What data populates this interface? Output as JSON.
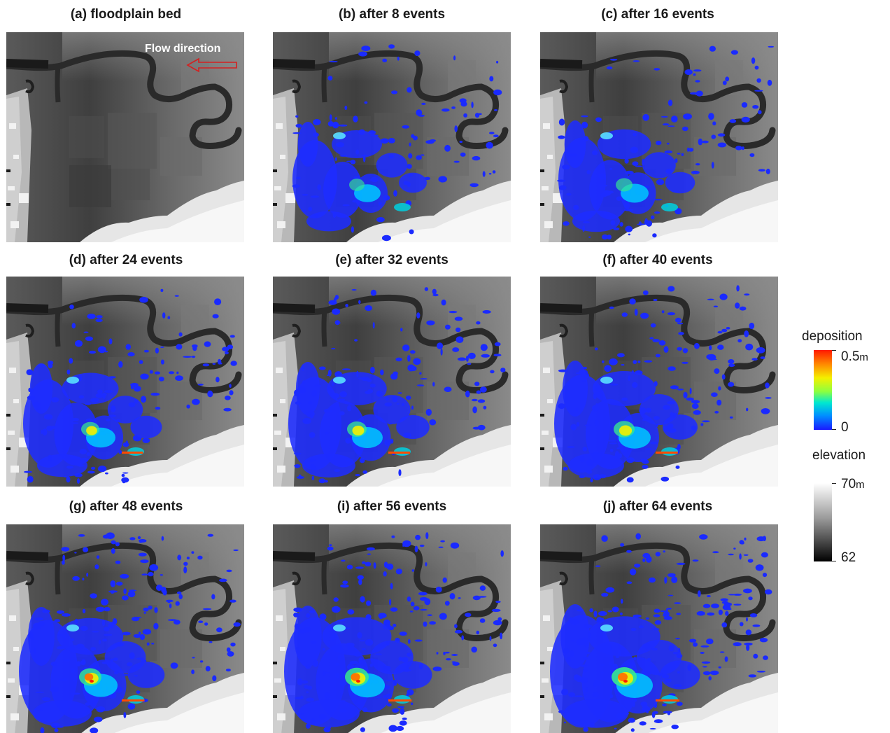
{
  "figure": {
    "panels": [
      {
        "label": "(a) floodplain bed",
        "stage": 0
      },
      {
        "label": "(b) after 8 events",
        "stage": 1
      },
      {
        "label": "(c) after 16 events",
        "stage": 2
      },
      {
        "label": "(d) after 24 events",
        "stage": 3
      },
      {
        "label": "(e) after 32 events",
        "stage": 4
      },
      {
        "label": "(f) after 40 events",
        "stage": 5
      },
      {
        "label": "(g) after 48 events",
        "stage": 6
      },
      {
        "label": "(i) after 56 events",
        "stage": 7
      },
      {
        "label": "(j) after 64 events",
        "stage": 8
      }
    ],
    "annotation": {
      "flow_label": "Flow direction",
      "arrow_color": "#d42020"
    }
  },
  "legend": {
    "deposition": {
      "title": "deposition",
      "max_value": "0.5",
      "max_unit": "m",
      "min_value": "0",
      "colors": [
        "#ff1a00",
        "#f4f000",
        "#00e8d0",
        "#1a1aff"
      ]
    },
    "elevation": {
      "title": "elevation",
      "max_value": "70",
      "max_unit": "m",
      "min_value": "62",
      "colors": [
        "#ffffff",
        "#000000"
      ]
    }
  }
}
